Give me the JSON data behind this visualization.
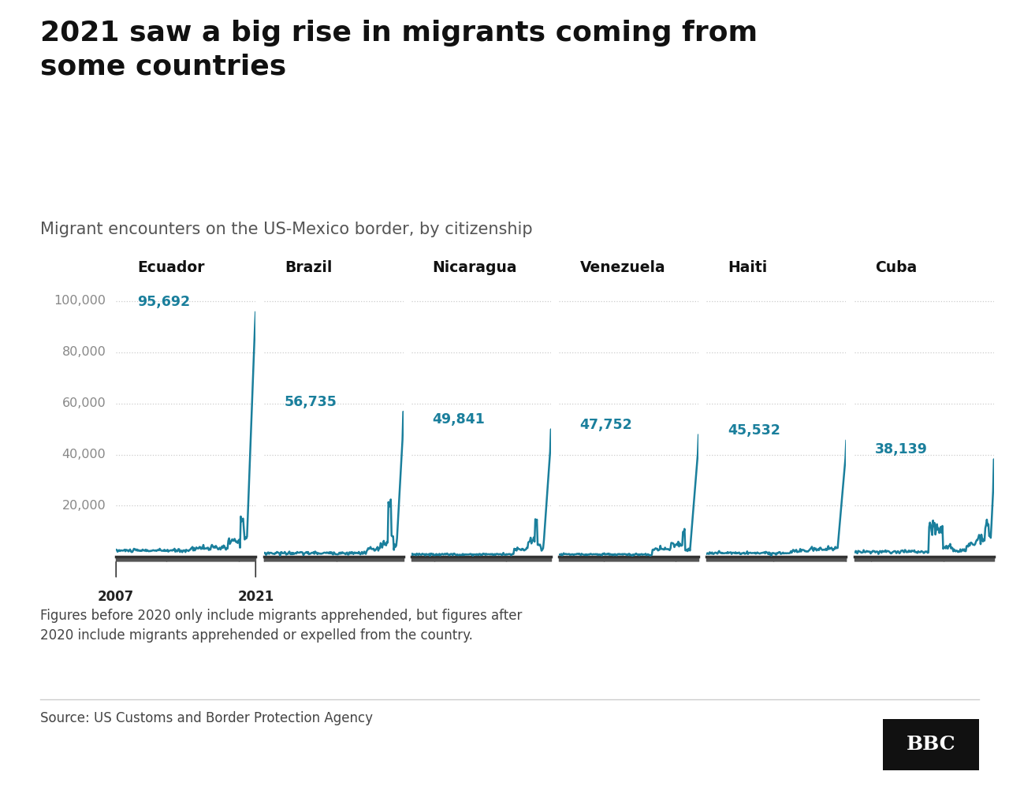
{
  "title": "2021 saw a big rise in migrants coming from\nsome countries",
  "subtitle": "Migrant encounters on the US-Mexico border, by citizenship",
  "footnote": "Figures before 2020 only include migrants apprehended, but figures after\n2020 include migrants apprehended or expelled from the country.",
  "source": "Source: US Customs and Border Protection Agency",
  "line_color": "#1a7f9c",
  "background_color": "#ffffff",
  "title_color": "#111111",
  "subtitle_color": "#555555",
  "axis_label_color": "#888888",
  "countries": [
    "Ecuador",
    "Brazil",
    "Nicaragua",
    "Venezuela",
    "Haiti",
    "Cuba"
  ],
  "peak_values": [
    95692,
    56735,
    49841,
    47752,
    45532,
    38139
  ],
  "ylim": [
    0,
    108000
  ],
  "yticks": [
    20000,
    40000,
    60000,
    80000,
    100000
  ],
  "ytick_labels": [
    "20,000",
    "40,000",
    "60,000",
    "80,000",
    "100,000"
  ]
}
